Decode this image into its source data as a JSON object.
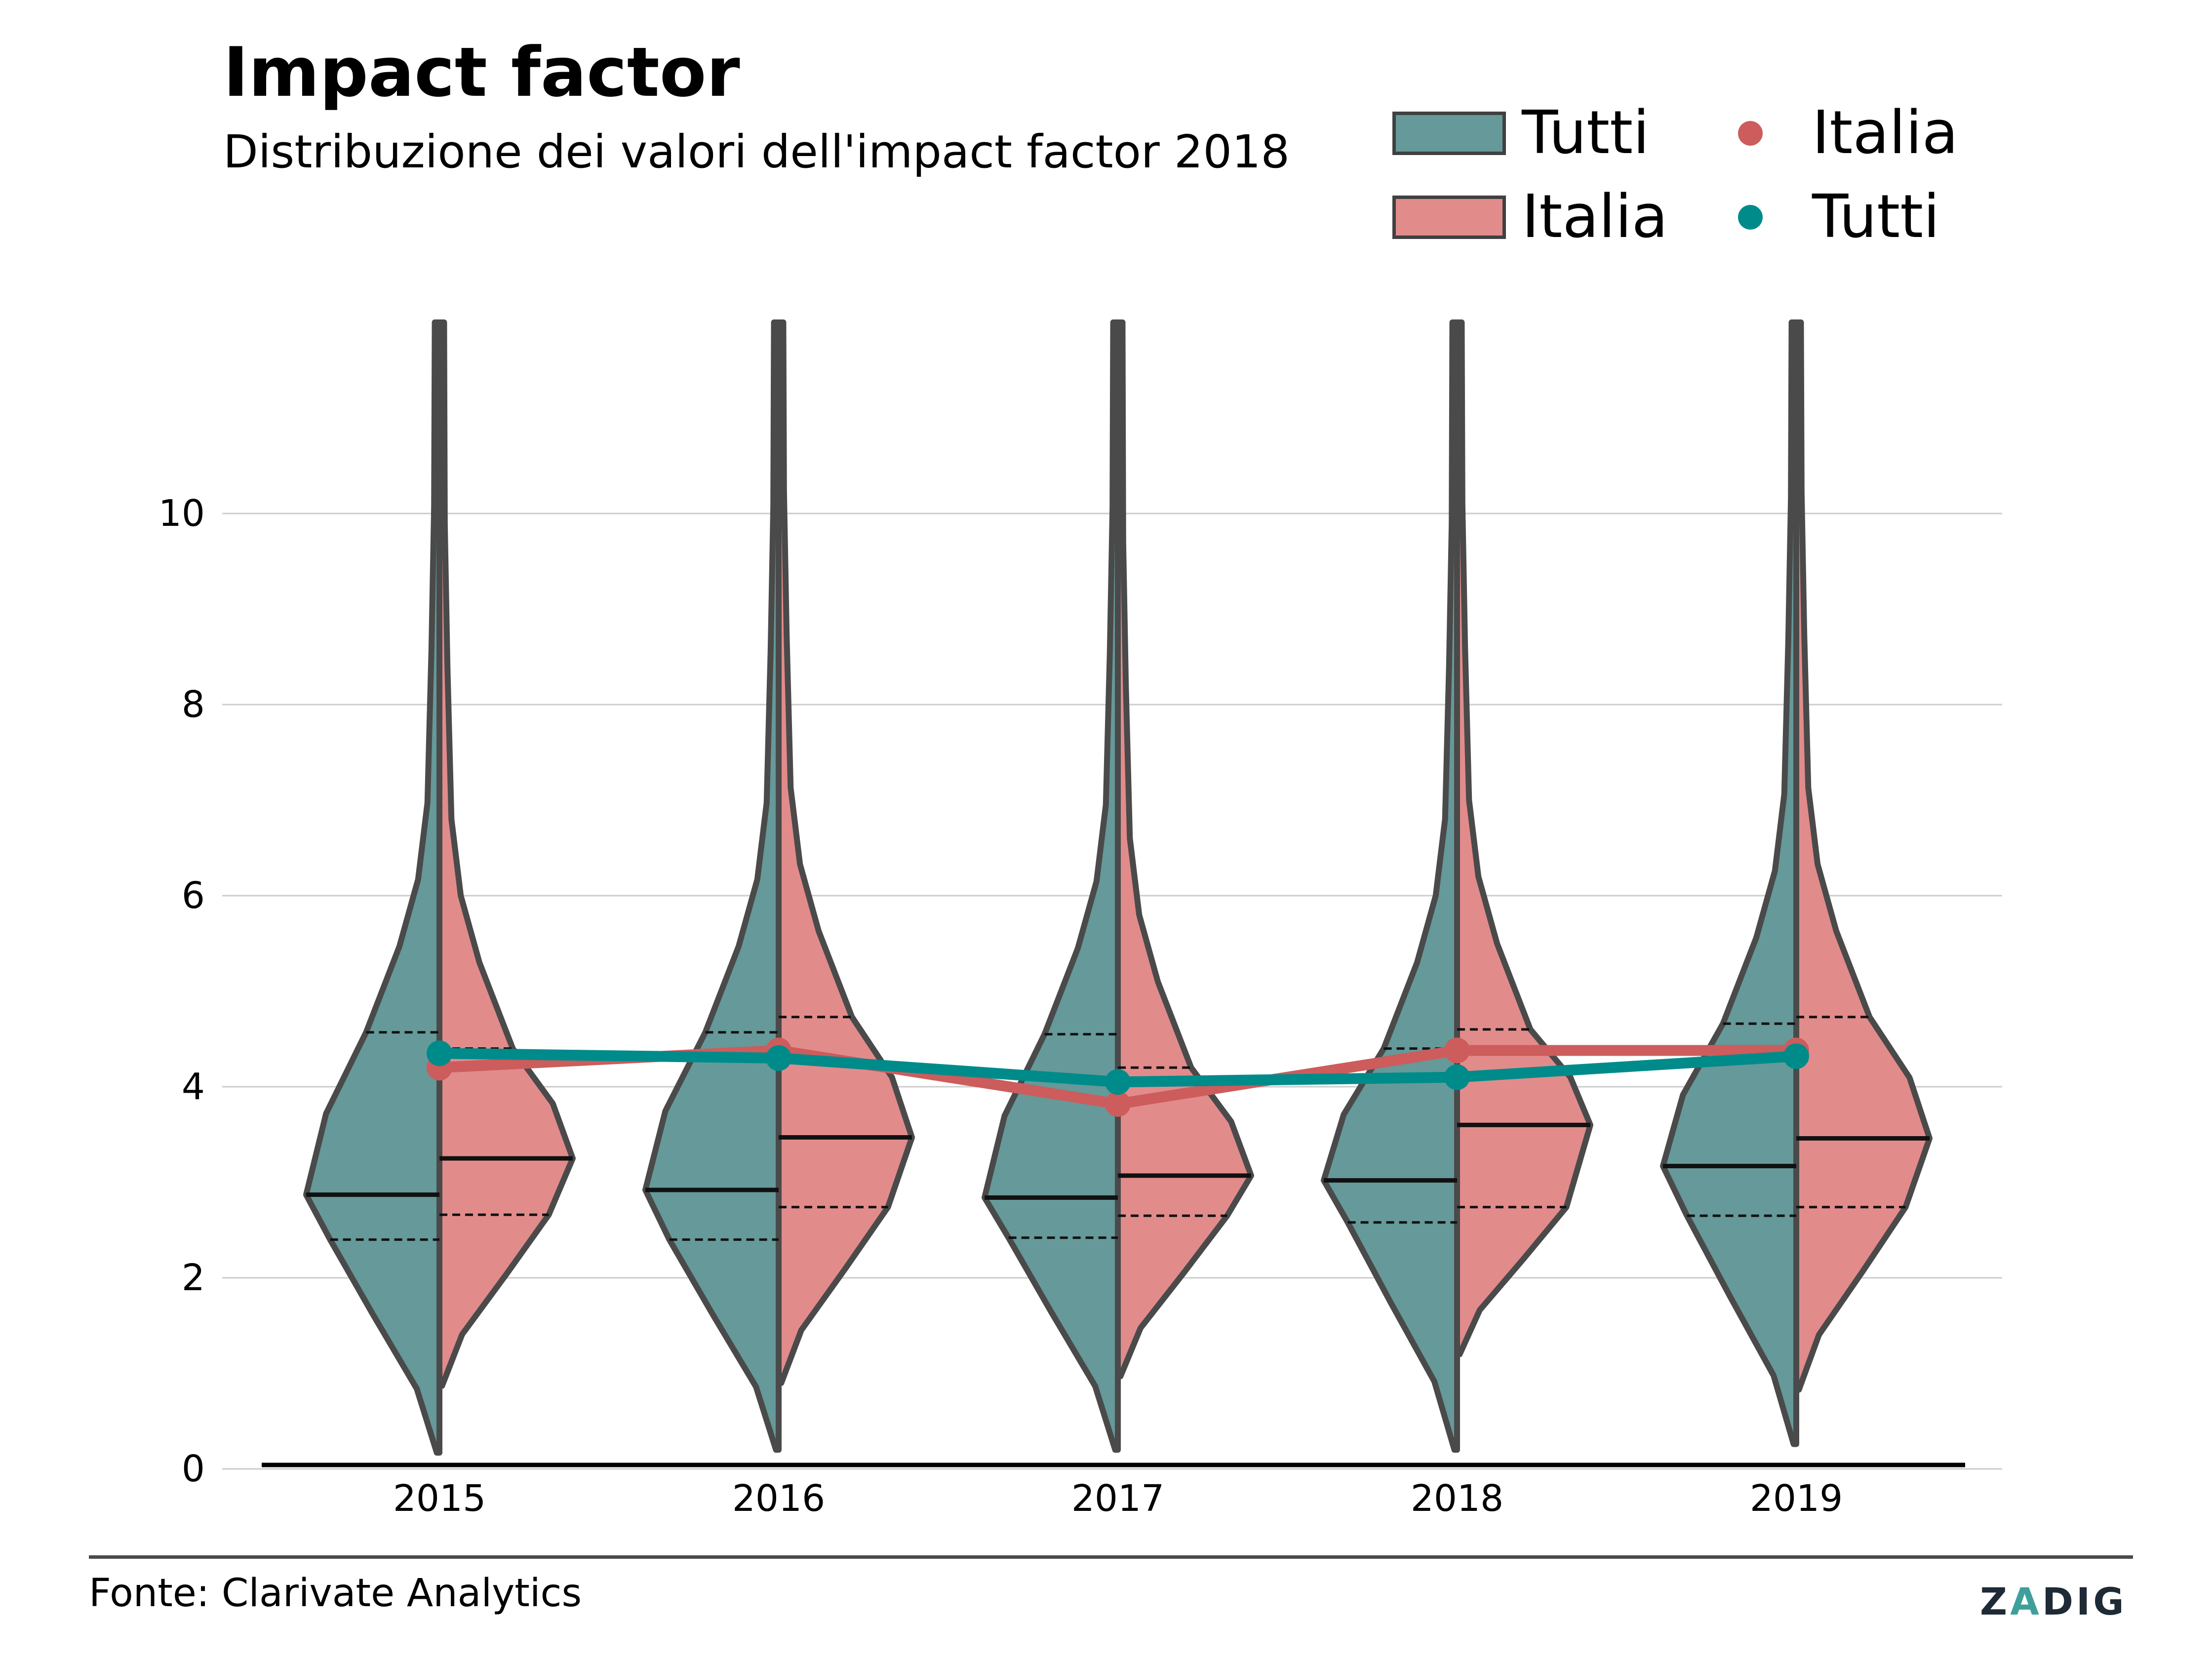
{
  "header": {
    "title": "Impact factor",
    "subtitle": "Distribuzione dei valori dell'impact factor 2018"
  },
  "legend": {
    "items": [
      {
        "label": "Tutti",
        "kind": "patch",
        "color": "#669999"
      },
      {
        "label": "Italia",
        "kind": "patch",
        "color": "#e28b8b"
      },
      {
        "label": "Italia",
        "kind": "dot",
        "color": "#cd5c5c"
      },
      {
        "label": "Tutti",
        "kind": "dot",
        "color": "#008b8b"
      }
    ]
  },
  "footer": {
    "source": "Fonte: Clarivate Analytics",
    "logo_left": "Z",
    "logo_accent": "A",
    "logo_right": "DIG"
  },
  "chart_data": {
    "type": "violin",
    "title": "Impact factor",
    "subtitle": "Distribuzione dei valori dell'impact factor 2018",
    "xlabel": "",
    "ylabel": "",
    "categories": [
      "2015",
      "2016",
      "2017",
      "2018",
      "2019"
    ],
    "y_ticks": [
      0,
      2,
      4,
      6,
      8,
      10
    ],
    "ylim": [
      0,
      12
    ],
    "grid": "horizontal",
    "legend_position": "top-right",
    "colors": {
      "tutti": "#669999",
      "italia": "#e28b8b",
      "outline": "#4a4a4a",
      "line_tutti": "#008b8b",
      "line_italia": "#cd5c5c"
    },
    "violins": {
      "Tutti": [
        {
          "min": 0.17,
          "q1": 2.4,
          "median": 2.87,
          "q3": 4.57
        },
        {
          "min": 0.2,
          "q1": 2.4,
          "median": 2.92,
          "q3": 4.57
        },
        {
          "min": 0.2,
          "q1": 2.42,
          "median": 2.84,
          "q3": 4.55
        },
        {
          "min": 0.2,
          "q1": 2.58,
          "median": 3.02,
          "q3": 4.4
        },
        {
          "min": 0.26,
          "q1": 2.65,
          "median": 3.17,
          "q3": 4.66
        }
      ],
      "Italia": [
        {
          "min": 0.87,
          "q1": 2.66,
          "median": 3.25,
          "q3": 4.4
        },
        {
          "min": 0.9,
          "q1": 2.74,
          "median": 3.47,
          "q3": 4.73
        },
        {
          "min": 0.97,
          "q1": 2.65,
          "median": 3.07,
          "q3": 4.2
        },
        {
          "min": 1.2,
          "q1": 2.74,
          "median": 3.6,
          "q3": 4.6
        },
        {
          "min": 0.83,
          "q1": 2.74,
          "median": 3.46,
          "q3": 4.73
        }
      ]
    },
    "series": [
      {
        "name": "Italia",
        "values": [
          4.2,
          4.38,
          3.82,
          4.38,
          4.38
        ]
      },
      {
        "name": "Tutti",
        "values": [
          4.35,
          4.3,
          4.05,
          4.1,
          4.32
        ]
      }
    ]
  }
}
